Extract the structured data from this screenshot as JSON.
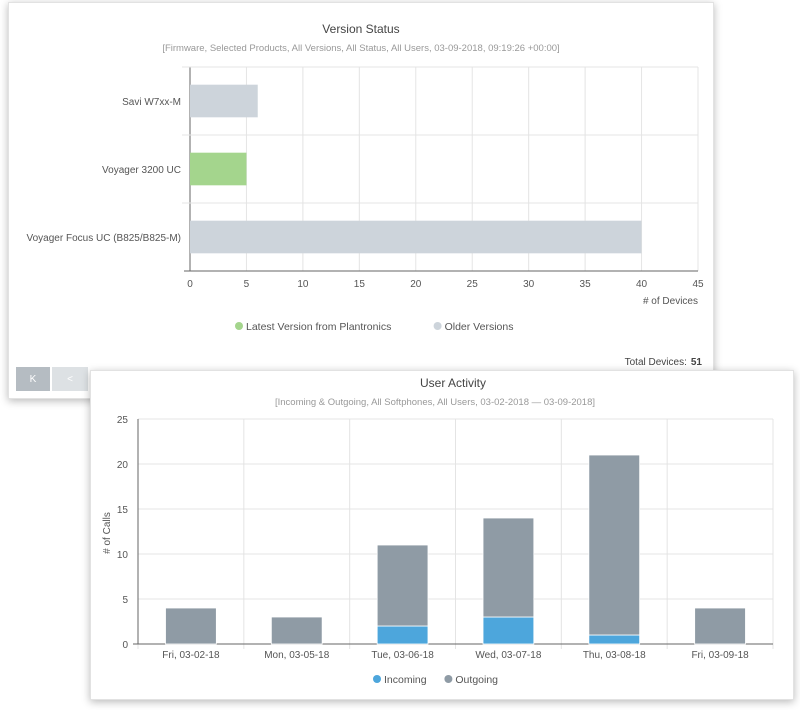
{
  "version_status": {
    "total_label": "Total Devices:",
    "total_value": "51",
    "pager": {
      "first_label": "K",
      "prev_label": "<"
    }
  },
  "user_activity": {},
  "colors": {
    "latest": "#a4d58d",
    "older": "#cdd4db",
    "incoming": "#4da6dc",
    "outgoing": "#8f9ba5"
  },
  "chart_data": [
    {
      "type": "bar",
      "orientation": "horizontal",
      "title": "Version Status",
      "subtitle": "[Firmware, Selected Products, All Versions, All Status, All Users, 03-09-2018, 09:19:26 +00:00]",
      "categories": [
        "Savi W7xx-M",
        "Voyager 3200 UC",
        "Voyager Focus UC (B825/B825-M)"
      ],
      "series": [
        {
          "name": "Latest Version from Plantronics",
          "values": [
            0,
            5,
            0
          ]
        },
        {
          "name": "Older Versions",
          "values": [
            6,
            0,
            40
          ]
        }
      ],
      "xlabel": "# of Devices",
      "ylabel": "",
      "xlim": [
        0,
        45
      ],
      "xticks": [
        0,
        5,
        10,
        15,
        20,
        25,
        30,
        35,
        40,
        45
      ],
      "grid": true,
      "legend": "bottom"
    },
    {
      "type": "bar",
      "stacked": true,
      "title": "User Activity",
      "subtitle": "[Incoming & Outgoing, All Softphones, All Users, 03-02-2018 — 03-09-2018]",
      "categories": [
        "Fri, 03-02-18",
        "Mon, 03-05-18",
        "Tue, 03-06-18",
        "Wed, 03-07-18",
        "Thu, 03-08-18",
        "Fri, 03-09-18"
      ],
      "series": [
        {
          "name": "Incoming",
          "values": [
            0,
            0,
            2,
            3,
            1,
            0
          ]
        },
        {
          "name": "Outgoing",
          "values": [
            4,
            3,
            9,
            11,
            20,
            4
          ]
        }
      ],
      "xlabel": "",
      "ylabel": "# of Calls",
      "ylim": [
        0,
        25
      ],
      "yticks": [
        0,
        5,
        10,
        15,
        20,
        25
      ],
      "grid": true,
      "legend": "bottom"
    }
  ]
}
